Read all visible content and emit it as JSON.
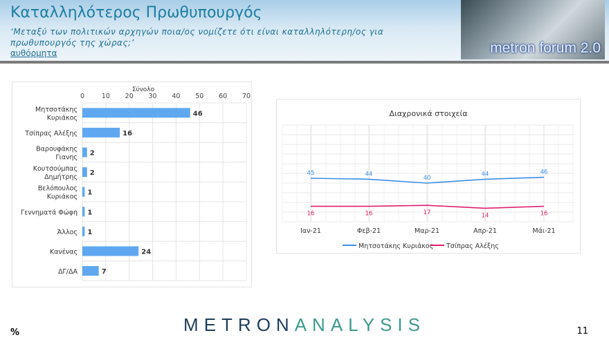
{
  "header": {
    "title": "Καταλληλότερος Πρωθυπουργός",
    "subtitle": "‘Μεταξύ των πολιτικών αρχηγών ποια/ος νομίζετε ότι είναι καταλληλότερη/ος για πρωθυπουργός της χώρας;’",
    "link": "αυθόρμητα",
    "logo_text": "metron forum 2.0"
  },
  "footer": {
    "unit": "%",
    "page": "11",
    "brand_a": "METRON",
    "brand_b": "ANALYSIS"
  },
  "chart_data": [
    {
      "type": "bar",
      "orientation": "horizontal",
      "title": "Σύνολο",
      "xlim": [
        0,
        70
      ],
      "ticks": [
        0,
        10,
        20,
        30,
        40,
        50,
        60,
        70
      ],
      "grid": true,
      "color": "#5fa8f0",
      "categories": [
        "Μητσοτάκης Κυριάκος",
        "Τσίπρας Αλέξης",
        "Βαρουφάκης Γιανης",
        "Κουτσούμπας Δημήτρης",
        "Βελόπουλος Κυριάκος",
        "Γεννηματά Φώφη",
        "Άλλος",
        "Κανένας",
        "ΔΓ/ΔΑ"
      ],
      "values": [
        46,
        16,
        2,
        2,
        1,
        1,
        1,
        24,
        7
      ]
    },
    {
      "type": "line",
      "title": "Διαχρονικά στοιχεία",
      "categories": [
        "Ιαν-21",
        "Φεβ-21",
        "Μαρ-21",
        "Απρ-21",
        "Μάι-21"
      ],
      "ylim": [
        0,
        100
      ],
      "grid": true,
      "legend": "bottom",
      "series": [
        {
          "name": "Μητσοτάκης Κυριάκος",
          "color": "#3a8ee6",
          "values": [
            45,
            44,
            40,
            44,
            46
          ]
        },
        {
          "name": "Τσίπρας Αλέξης",
          "color": "#e0206e",
          "values": [
            16,
            16,
            17,
            14,
            16
          ]
        }
      ]
    }
  ]
}
